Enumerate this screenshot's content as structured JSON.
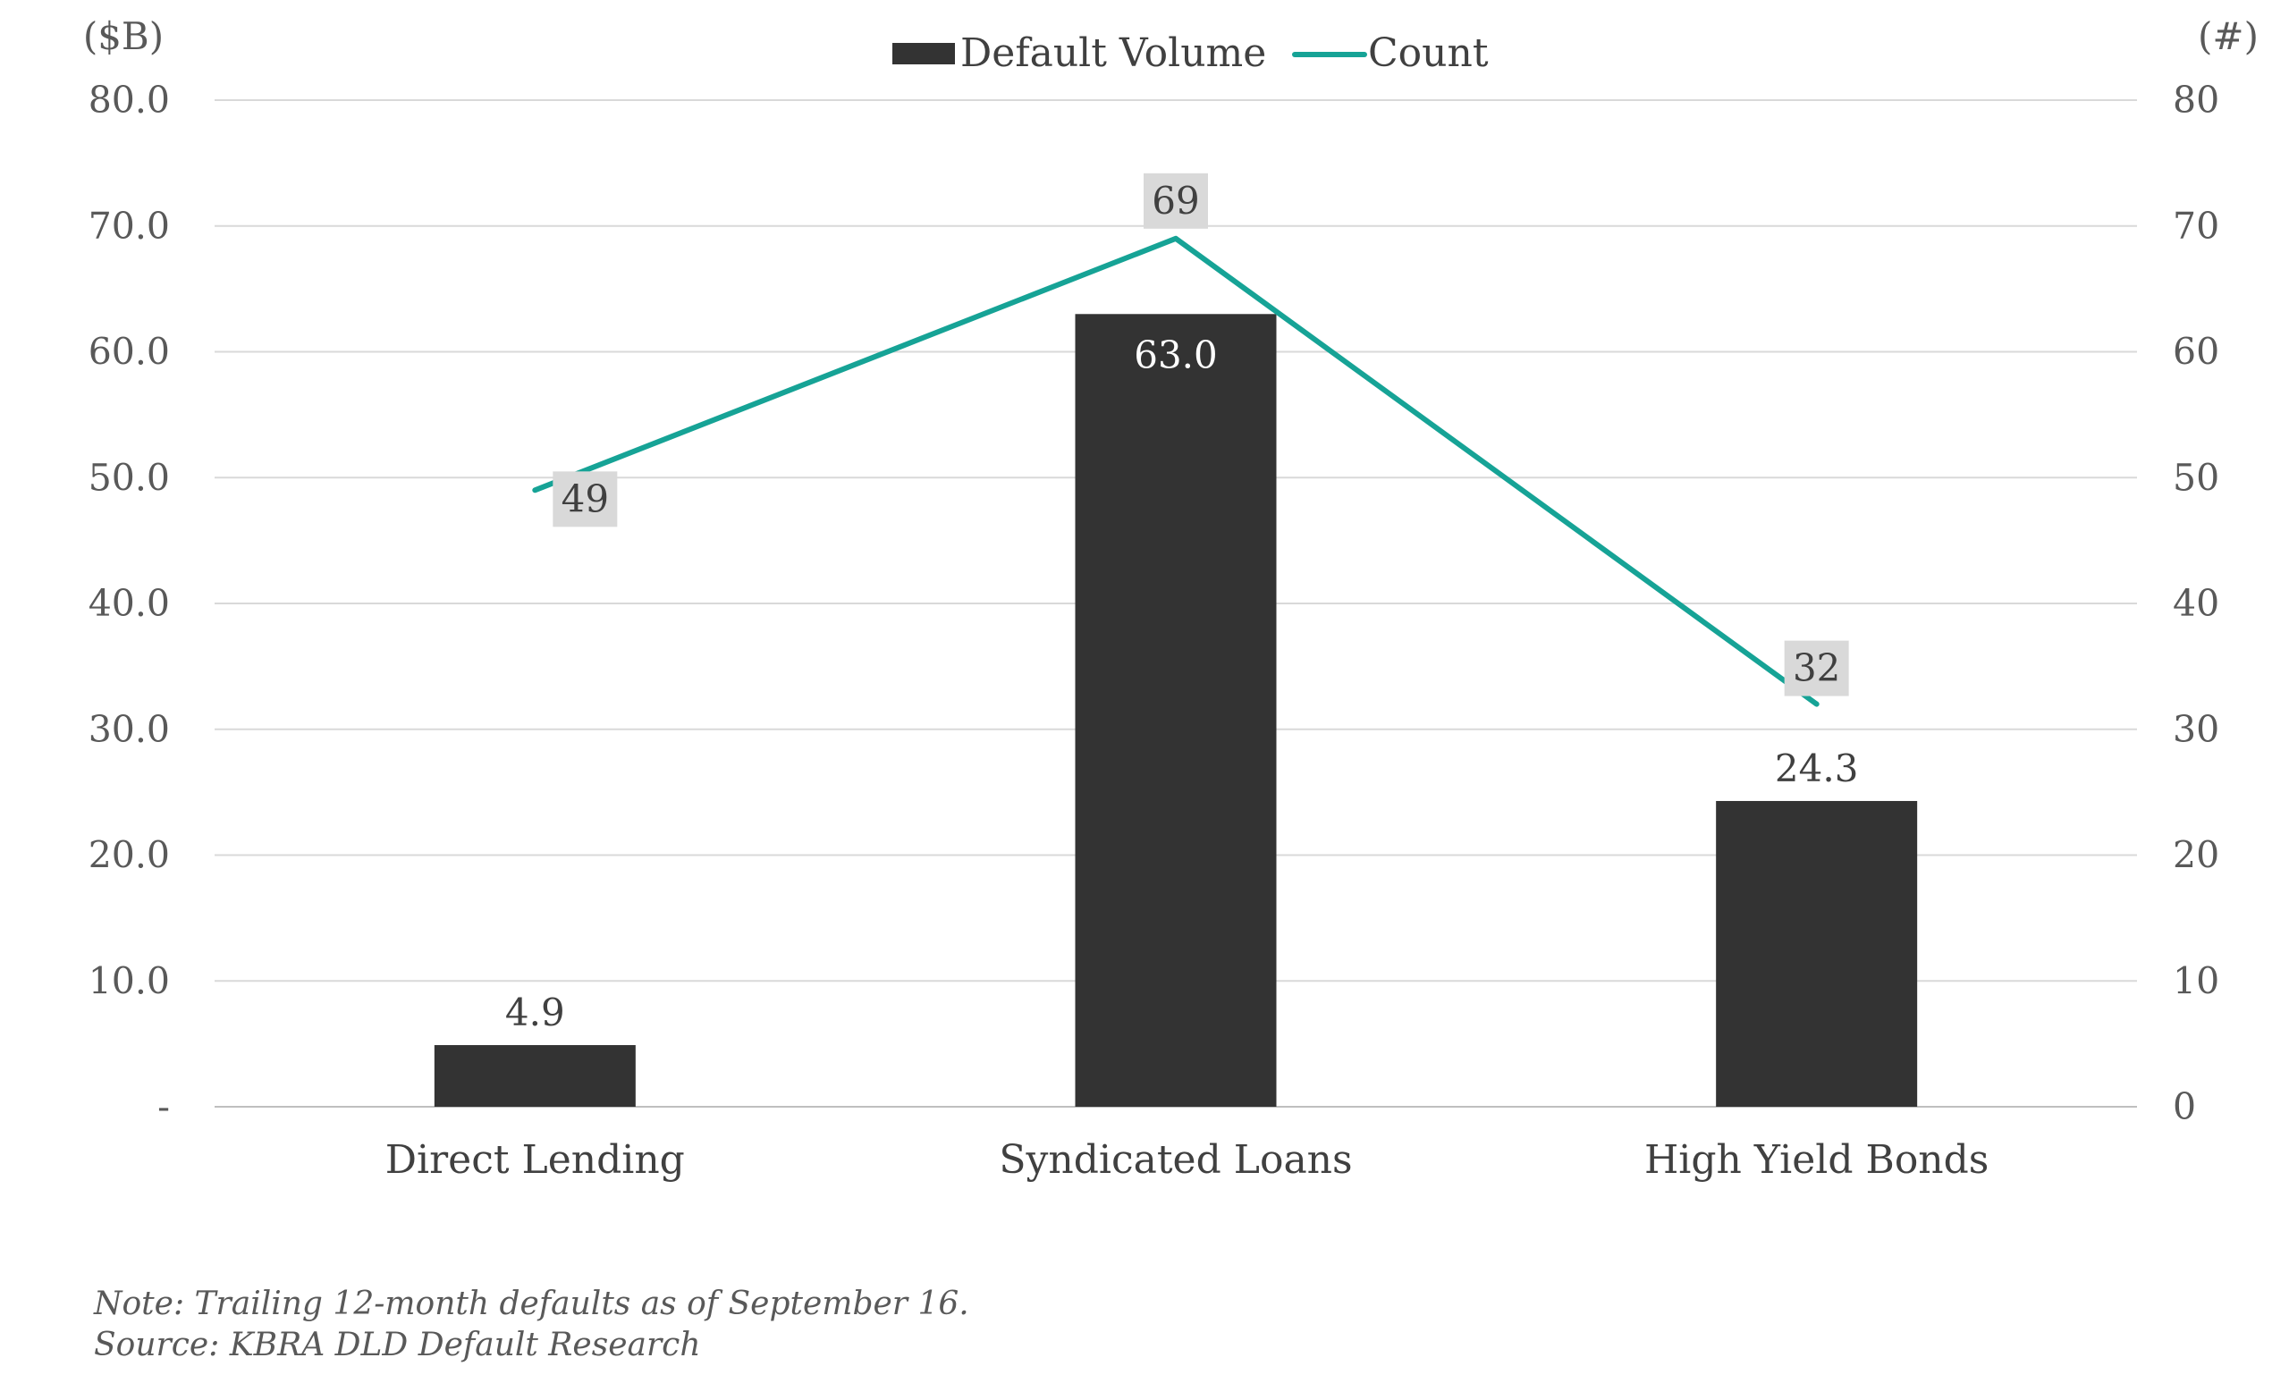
{
  "chart_data": {
    "type": "bar",
    "categories": [
      "Direct Lending",
      "Syndicated Loans",
      "High Yield Bonds"
    ],
    "series": [
      {
        "name": "Default Volume",
        "type": "bar",
        "axis": "left",
        "values": [
          4.9,
          63.0,
          24.3
        ],
        "labels": [
          "4.9",
          "63.0",
          "24.3"
        ],
        "color": "#333333"
      },
      {
        "name": "Count",
        "type": "line",
        "axis": "right",
        "values": [
          49,
          69,
          32
        ],
        "labels": [
          "49",
          "69",
          "32"
        ],
        "color": "#16A396"
      }
    ],
    "left_axis": {
      "unit": "($B)",
      "ylim": [
        0,
        80
      ],
      "ticks": [
        0,
        10,
        20,
        30,
        40,
        50,
        60,
        70,
        80
      ],
      "tick_labels": [
        "-",
        "10.0",
        "20.0",
        "30.0",
        "40.0",
        "50.0",
        "60.0",
        "70.0",
        "80.0"
      ]
    },
    "right_axis": {
      "unit": "(#)",
      "ylim": [
        0,
        80
      ],
      "ticks": [
        0,
        10,
        20,
        30,
        40,
        50,
        60,
        70,
        80
      ],
      "tick_labels": [
        "0",
        "10",
        "20",
        "30",
        "40",
        "50",
        "60",
        "70",
        "80"
      ]
    },
    "grid": true,
    "legend_position": "top-center",
    "notes": [
      "Note: Trailing 12-month defaults as of September 16.",
      "Source: KBRA DLD Default Research"
    ]
  }
}
